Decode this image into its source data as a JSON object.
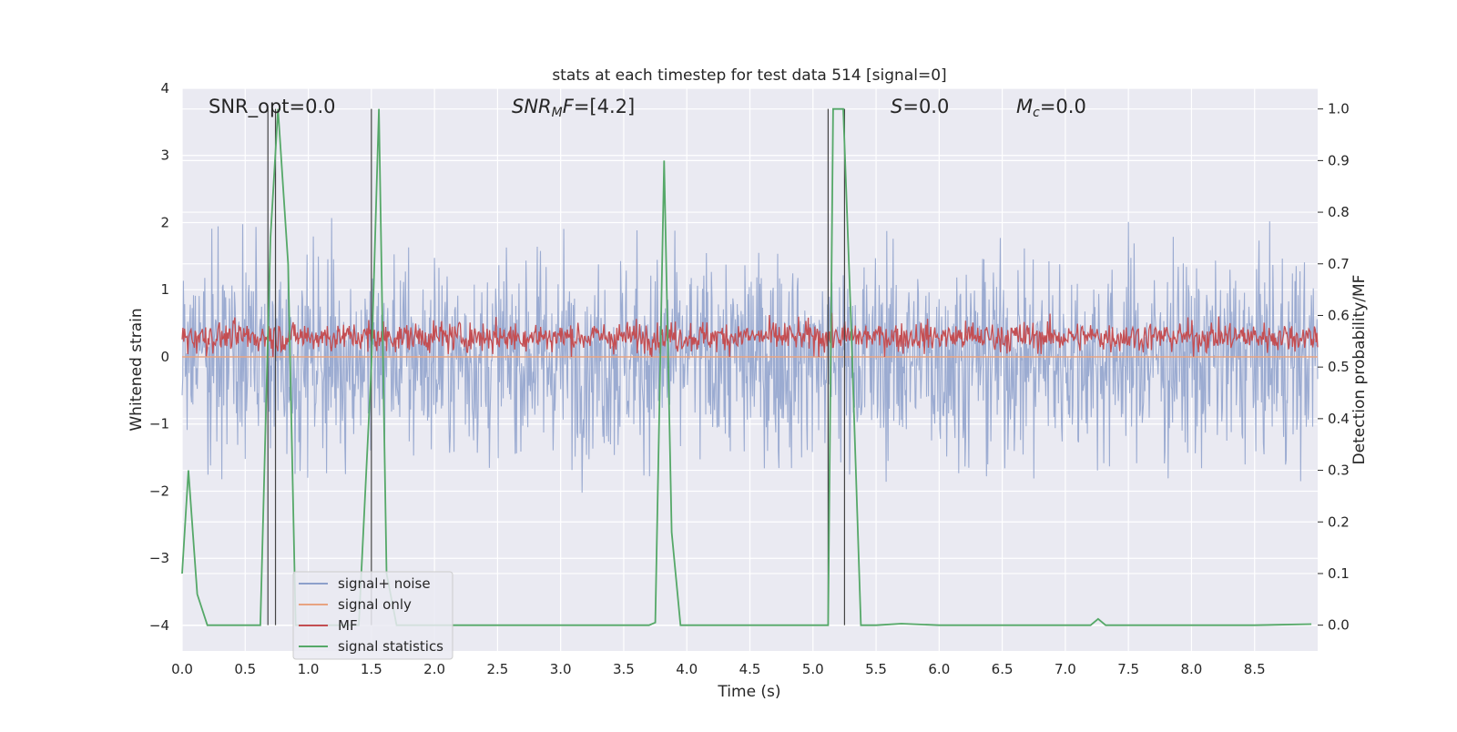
{
  "chart_data": {
    "type": "line",
    "title": "stats at each timestep for test data 514 [signal=0]",
    "xlabel": "Time (s)",
    "ylabel_left": "Whitened strain",
    "ylabel_right": "Detection probability/MF",
    "xlim": [
      0.0,
      9.0
    ],
    "ylim_left": [
      -4.38,
      4.0
    ],
    "ylim_right": [
      -0.05,
      1.04
    ],
    "x_ticks": [
      "0.0",
      "0.5",
      "1.0",
      "1.5",
      "2.0",
      "2.5",
      "3.0",
      "3.5",
      "4.0",
      "4.5",
      "5.0",
      "5.5",
      "6.0",
      "6.5",
      "7.0",
      "7.5",
      "8.0",
      "8.5"
    ],
    "y_ticks_left": [
      "4",
      "3",
      "2",
      "1",
      "0",
      "−1",
      "−2",
      "−3",
      "−4"
    ],
    "y_ticks_left_values": [
      4,
      3,
      2,
      1,
      0,
      -1,
      -2,
      -3,
      -4
    ],
    "y_ticks_right": [
      "1.0",
      "0.9",
      "0.8",
      "0.7",
      "0.6",
      "0.5",
      "0.4",
      "0.3",
      "0.2",
      "0.1",
      "0.0"
    ],
    "y_ticks_right_values": [
      1.0,
      0.9,
      0.8,
      0.7,
      0.6,
      0.5,
      0.4,
      0.3,
      0.2,
      0.1,
      0.0
    ],
    "grid": true,
    "legend_placement": "lower-left",
    "annotations": {
      "snr_opt": "SNR_opt=0.0",
      "snr_mf": "=[4.2]",
      "snr_mf_italic": "SNR",
      "snr_mf_sub": "M",
      "snr_mf_tail": "F",
      "s_italic": "S",
      "s_value": "=0.0",
      "mc_italic": "M",
      "mc_sub": "c",
      "mc_value": "=0.0"
    },
    "series": [
      {
        "name": "signal+ noise",
        "color": "#8da0cb",
        "axis": "left",
        "kind": "noise",
        "amplitude_range": [
          -3.5,
          3.3
        ]
      },
      {
        "name": "signal only",
        "color": "#e8a381",
        "axis": "left",
        "values": [
          0.0,
          0.0
        ]
      },
      {
        "name": "MF",
        "color": "#c44e52",
        "axis": "left",
        "kind": "mf",
        "amplitude_range": [
          0.0,
          0.85
        ]
      },
      {
        "name": "signal statistics",
        "color": "#55a868",
        "axis": "right",
        "x": [
          0.0,
          0.05,
          0.12,
          0.2,
          0.3,
          0.4,
          0.5,
          0.62,
          0.7,
          0.76,
          0.84,
          0.9,
          1.0,
          1.2,
          1.4,
          1.5,
          1.56,
          1.62,
          1.7,
          2.0,
          2.5,
          3.0,
          3.5,
          3.7,
          3.75,
          3.82,
          3.88,
          3.95,
          4.2,
          4.6,
          5.0,
          5.12,
          5.16,
          5.24,
          5.3,
          5.38,
          5.5,
          5.7,
          6.0,
          6.5,
          7.0,
          7.2,
          7.26,
          7.32,
          7.5,
          8.0,
          8.5,
          8.95
        ],
        "values": [
          0.1,
          0.3,
          0.06,
          0.0,
          0.0,
          0.0,
          0.0,
          0.0,
          0.75,
          1.0,
          0.7,
          0.0,
          0.0,
          0.0,
          0.0,
          0.5,
          1.0,
          0.1,
          0.0,
          0.0,
          0.0,
          0.0,
          0.0,
          0.0,
          0.005,
          0.9,
          0.18,
          0.0,
          0.0,
          0.0,
          0.0,
          0.0,
          1.0,
          1.0,
          0.6,
          0.0,
          0.0,
          0.003,
          0.0,
          0.0,
          0.0,
          0.0,
          0.012,
          0.0,
          0.0,
          0.0,
          0.0,
          0.002
        ]
      }
    ],
    "vertical_markers": [
      0.68,
      0.74,
      1.5,
      5.12,
      5.25
    ]
  }
}
